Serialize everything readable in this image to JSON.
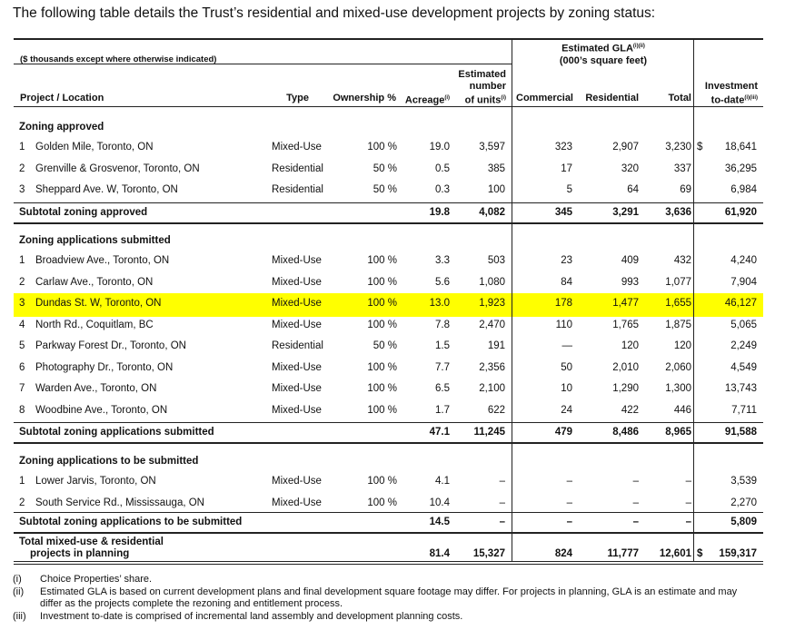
{
  "title": "The following table details the Trust’s residential and mixed-use development projects by zoning status:",
  "header": {
    "units_note": "($ thousands except where otherwise indicated)",
    "gla_title": "Estimated GLA",
    "gla_sup": "(i)(ii)",
    "gla_sub": "(000’s square feet)",
    "project": "Project / Location",
    "type": "Type",
    "ownership": "Ownership %",
    "acreage": "Acreage",
    "acreage_sup": "(i)",
    "units_1": "Estimated",
    "units_2": "number",
    "units_3": "of units",
    "units_sup": "(i)",
    "commercial": "Commercial",
    "residential": "Residential",
    "total": "Total",
    "investment_1": "Investment",
    "investment_2": "to-date",
    "investment_sup": "(i)(iii)"
  },
  "highlight_color": "#ffff00",
  "sections": [
    {
      "title": "Zoning approved",
      "rows": [
        [
          "1",
          "Golden Mile, Toronto, ON",
          "Mixed-Use",
          "100 %",
          "19.0",
          "3,597",
          "323",
          "2,907",
          "3,230",
          "$",
          "18,641"
        ],
        [
          "2",
          "Grenville & Grosvenor, Toronto, ON",
          "Residential",
          "50 %",
          "0.5",
          "385",
          "17",
          "320",
          "337",
          "",
          "36,295"
        ],
        [
          "3",
          "Sheppard Ave. W, Toronto, ON",
          "Residential",
          "50 %",
          "0.3",
          "100",
          "5",
          "64",
          "69",
          "",
          "6,984"
        ]
      ],
      "subtotal": [
        "Subtotal zoning approved",
        "19.8",
        "4,082",
        "345",
        "3,291",
        "3,636",
        "61,920"
      ]
    },
    {
      "title": "Zoning applications submitted",
      "rows": [
        [
          "1",
          "Broadview Ave., Toronto, ON",
          "Mixed-Use",
          "100 %",
          "3.3",
          "503",
          "23",
          "409",
          "432",
          "",
          "4,240"
        ],
        [
          "2",
          "Carlaw Ave., Toronto, ON",
          "Mixed-Use",
          "100 %",
          "5.6",
          "1,080",
          "84",
          "993",
          "1,077",
          "",
          "7,904"
        ],
        [
          "3",
          "Dundas St. W, Toronto, ON",
          "Mixed-Use",
          "100 %",
          "13.0",
          "1,923",
          "178",
          "1,477",
          "1,655",
          "",
          "46,127"
        ],
        [
          "4",
          "North Rd., Coquitlam, BC",
          "Mixed-Use",
          "100 %",
          "7.8",
          "2,470",
          "110",
          "1,765",
          "1,875",
          "",
          "5,065"
        ],
        [
          "5",
          "Parkway Forest Dr., Toronto, ON",
          "Residential",
          "50 %",
          "1.5",
          "191",
          "—",
          "120",
          "120",
          "",
          "2,249"
        ],
        [
          "6",
          "Photography Dr., Toronto, ON",
          "Mixed-Use",
          "100 %",
          "7.7",
          "2,356",
          "50",
          "2,010",
          "2,060",
          "",
          "4,549"
        ],
        [
          "7",
          "Warden Ave., Toronto, ON",
          "Mixed-Use",
          "100 %",
          "6.5",
          "2,100",
          "10",
          "1,290",
          "1,300",
          "",
          "13,743"
        ],
        [
          "8",
          "Woodbine Ave., Toronto, ON",
          "Mixed-Use",
          "100 %",
          "1.7",
          "622",
          "24",
          "422",
          "446",
          "",
          "7,711"
        ]
      ],
      "subtotal": [
        "Subtotal zoning applications submitted",
        "47.1",
        "11,245",
        "479",
        "8,486",
        "8,965",
        "91,588"
      ]
    },
    {
      "title": "Zoning applications to be submitted",
      "rows": [
        [
          "1",
          "Lower Jarvis, Toronto, ON",
          "Mixed-Use",
          "100 %",
          "4.1",
          "–",
          "–",
          "–",
          "–",
          "",
          "3,539"
        ],
        [
          "2",
          "South Service Rd., Mississauga, ON",
          "Mixed-Use",
          "100 %",
          "10.4",
          "–",
          "–",
          "–",
          "–",
          "",
          "2,270"
        ]
      ],
      "subtotal": [
        "Subtotal zoning applications to be submitted",
        "14.5",
        "–",
        "–",
        "–",
        "–",
        "5,809"
      ]
    }
  ],
  "total": {
    "label_1": "Total mixed-use & residential",
    "label_2": "projects in planning",
    "acreage": "81.4",
    "units": "15,327",
    "commercial": "824",
    "residential": "11,777",
    "total": "12,601",
    "dollar": "$",
    "investment": "159,317"
  },
  "footnotes": [
    {
      "key": "(i)",
      "text": "Choice Properties’ share."
    },
    {
      "key": "(ii)",
      "text": "Estimated GLA is based on current development plans and final development square footage may differ. For projects in planning, GLA is an estimate and may differ as the projects complete the rezoning and entitlement process."
    },
    {
      "key": "(iii)",
      "text": "Investment to-date is comprised of incremental land assembly and development planning costs."
    }
  ]
}
